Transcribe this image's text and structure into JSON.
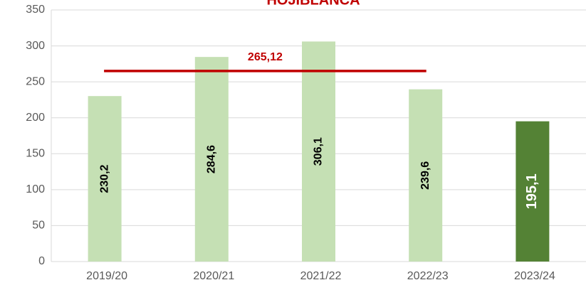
{
  "chart_data": {
    "type": "bar",
    "title": "HOJIBLANCA",
    "categories": [
      "2019/20",
      "2020/21",
      "2021/22",
      "2022/23",
      "2023/24"
    ],
    "values": [
      230.2,
      284.6,
      306.1,
      239.6,
      195.1
    ],
    "value_labels": [
      "230,2",
      "284,6",
      "306,1",
      "239,6",
      "195,1"
    ],
    "colors": [
      "#c5e0b4",
      "#c5e0b4",
      "#c5e0b4",
      "#c5e0b4",
      "#548235"
    ],
    "label_colors": [
      "#000000",
      "#000000",
      "#000000",
      "#000000",
      "#ffffff"
    ],
    "average": {
      "value": 265.12,
      "label": "265,12",
      "color": "#c00000"
    },
    "ylim": [
      0,
      350
    ],
    "yticks": [
      0,
      50,
      100,
      150,
      200,
      250,
      300,
      350
    ],
    "grid": true
  }
}
